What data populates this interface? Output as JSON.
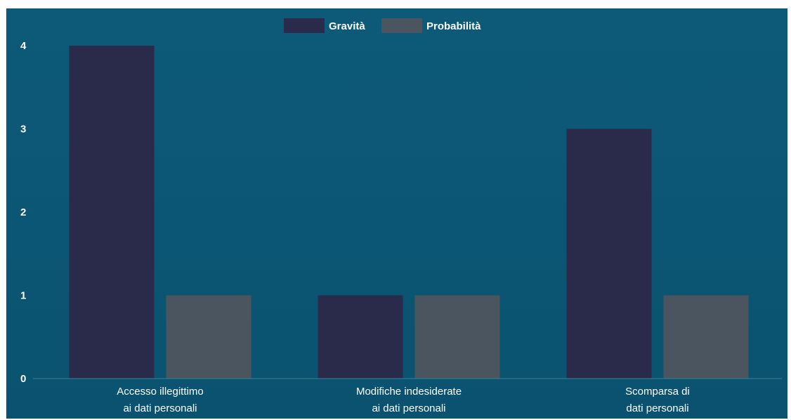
{
  "chart_data": {
    "type": "bar",
    "categories": [
      [
        "Accesso illegittimo",
        "ai dati personali"
      ],
      [
        "Modifiche indesiderate",
        "ai dati personali"
      ],
      [
        "Scomparsa di",
        "dati personali"
      ]
    ],
    "series": [
      {
        "name": "Gravità",
        "values": [
          4,
          1,
          3
        ],
        "color": "#2a2a4a"
      },
      {
        "name": "Probabilità",
        "values": [
          1,
          1,
          1
        ],
        "color": "#4a5560"
      }
    ],
    "ylim": [
      0,
      4
    ],
    "yticks": [
      0,
      1,
      2,
      3,
      4
    ],
    "legend": "top-center",
    "grid": false,
    "background": "#0b5674"
  }
}
